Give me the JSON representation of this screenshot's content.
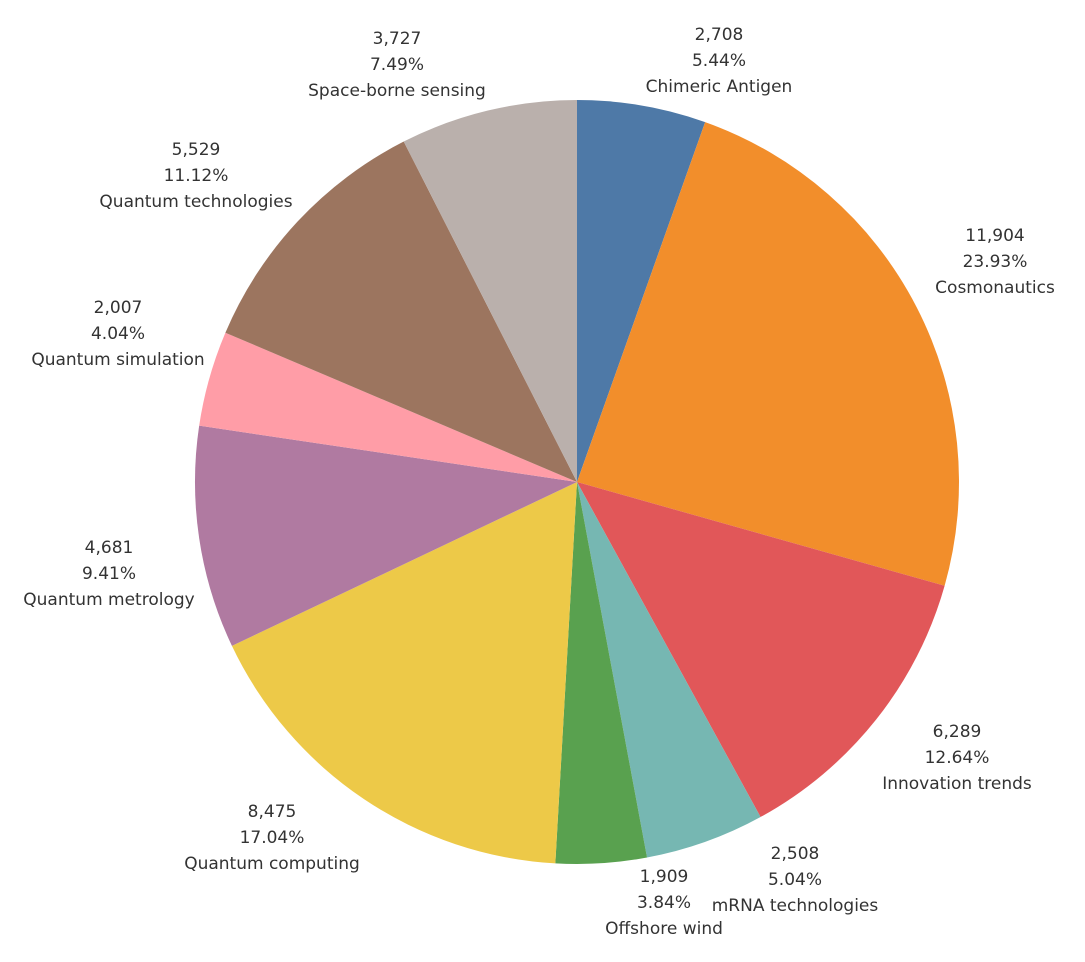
{
  "chart_data": {
    "type": "pie",
    "start_angle_deg": 0,
    "direction": "clockwise",
    "slices": [
      {
        "label": "Chimeric Antigen",
        "value": 2708,
        "value_text": "2,708",
        "percent_text": "5.44%",
        "color": "#4e79a7"
      },
      {
        "label": "Cosmonautics",
        "value": 11904,
        "value_text": "11,904",
        "percent_text": "23.93%",
        "color": "#f28e2b"
      },
      {
        "label": "Innovation trends",
        "value": 6289,
        "value_text": "6,289",
        "percent_text": "12.64%",
        "color": "#e15759"
      },
      {
        "label": "mRNA technologies",
        "value": 2508,
        "value_text": "2,508",
        "percent_text": "5.04%",
        "color": "#76b7b2"
      },
      {
        "label": "Offshore wind",
        "value": 1909,
        "value_text": "1,909",
        "percent_text": "3.84%",
        "color": "#59a14f"
      },
      {
        "label": "Quantum computing",
        "value": 8475,
        "value_text": "8,475",
        "percent_text": "17.04%",
        "color": "#edc948"
      },
      {
        "label": "Quantum metrology",
        "value": 4681,
        "value_text": "4,681",
        "percent_text": "9.41%",
        "color": "#b07aa1"
      },
      {
        "label": "Quantum simulation",
        "value": 2007,
        "value_text": "2,007",
        "percent_text": "4.04%",
        "color": "#ff9da7"
      },
      {
        "label": "Quantum technologies",
        "value": 5529,
        "value_text": "5,529",
        "percent_text": "11.12%",
        "color": "#9c755f"
      },
      {
        "label": "Space-borne sensing",
        "value": 3727,
        "value_text": "3,727",
        "percent_text": "7.49%",
        "color": "#bab0ac"
      }
    ]
  }
}
